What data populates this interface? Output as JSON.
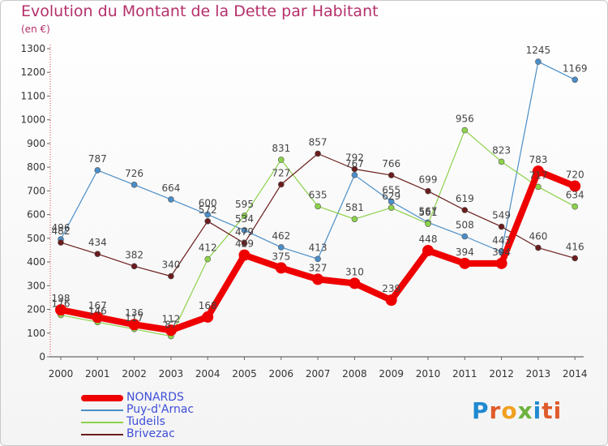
{
  "header": {
    "title": "Evolution du Montant de la Dette par Habitant",
    "subtitle": "(en €)"
  },
  "logo": {
    "text": "Proxiti",
    "letters": [
      "P",
      "r",
      "o",
      "x",
      "i",
      "ti"
    ]
  },
  "chart_data": {
    "type": "line",
    "title": "Evolution du Montant de la Dette par Habitant",
    "subtitle": "(en €)",
    "xlabel": "",
    "ylabel": "",
    "ylim": [
      0,
      1300
    ],
    "yticks": [
      0,
      100,
      200,
      300,
      400,
      500,
      600,
      700,
      800,
      900,
      1000,
      1100,
      1200,
      1300
    ],
    "grid": false,
    "legend_position": "bottom-left",
    "x": [
      "2000",
      "2001",
      "2002",
      "2003",
      "2004",
      "2005",
      "2006",
      "2007",
      "2008",
      "2009",
      "2010",
      "2011",
      "2012",
      "2013",
      "2014"
    ],
    "series": [
      {
        "name": "Puy-d'Arnac",
        "color": "#4a8ec8",
        "width": 1.2,
        "values": [
          496,
          787,
          726,
          664,
          600,
          534,
          462,
          413,
          767,
          655,
          567,
          508,
          443,
          1245,
          1169
        ]
      },
      {
        "name": "Tudeils",
        "color": "#8cd24a",
        "width": 1.2,
        "values": [
          176,
          146,
          117,
          87,
          412,
          595,
          831,
          635,
          581,
          629,
          561,
          956,
          823,
          717,
          634
        ]
      },
      {
        "name": "Brivezac",
        "color": "#6b1c1c",
        "width": 1.2,
        "values": [
          482,
          434,
          382,
          340,
          572,
          479,
          727,
          857,
          792,
          766,
          699,
          619,
          549,
          460,
          416
        ]
      },
      {
        "name": "NONARDS",
        "color": "#ee0000",
        "width": 8,
        "values": [
          198,
          167,
          136,
          112,
          168,
          429,
          375,
          327,
          310,
          239,
          448,
          394,
          394,
          783,
          720
        ]
      }
    ],
    "labels": [
      [
        496,
        787,
        726,
        664,
        600,
        534,
        462,
        413,
        767,
        655,
        567,
        508,
        443,
        1245,
        1169
      ],
      [
        176,
        146,
        117,
        87,
        412,
        595,
        831,
        635,
        581,
        629,
        561,
        956,
        823,
        717,
        634
      ],
      [
        482,
        434,
        382,
        340,
        572,
        479,
        727,
        857,
        792,
        766,
        699,
        619,
        549,
        460,
        416
      ],
      [
        198,
        167,
        136,
        112,
        168,
        429,
        375,
        327,
        310,
        239,
        448,
        394,
        394,
        783,
        720
      ]
    ]
  },
  "legend": [
    {
      "name": "NONARDS",
      "color": "#ee0000",
      "thick": true
    },
    {
      "name": "Puy-d'Arnac",
      "color": "#4a8ec8",
      "thick": false
    },
    {
      "name": "Tudeils",
      "color": "#8cd24a",
      "thick": false
    },
    {
      "name": "Brivezac",
      "color": "#6b1c1c",
      "thick": false
    }
  ]
}
